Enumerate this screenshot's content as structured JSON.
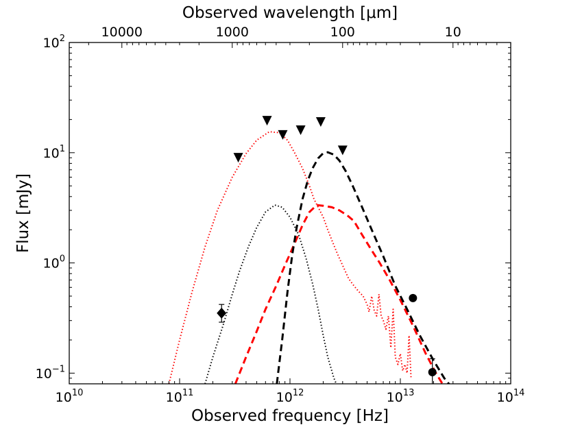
{
  "chart_data": {
    "type": "scatter",
    "xscale": "log",
    "yscale": "log",
    "xlim": [
      10000000000.0,
      100000000000000.0
    ],
    "ylim": [
      0.08,
      100
    ],
    "xlabel": "Observed frequency [Hz]",
    "ylabel": "Flux [mJy]",
    "top_xlabel": "Observed wavelength [μm]",
    "x_ticks": [
      {
        "value": 10000000000.0,
        "base": "10",
        "exp": "10"
      },
      {
        "value": 100000000000.0,
        "base": "10",
        "exp": "11"
      },
      {
        "value": 1000000000000.0,
        "base": "10",
        "exp": "12"
      },
      {
        "value": 10000000000000.0,
        "base": "10",
        "exp": "13"
      },
      {
        "value": 100000000000000.0,
        "base": "10",
        "exp": "14"
      }
    ],
    "y_ticks": [
      {
        "value": 0.1,
        "base": "10",
        "exp": "−1"
      },
      {
        "value": 1,
        "base": "10",
        "exp": "0"
      },
      {
        "value": 10,
        "base": "10",
        "exp": "1"
      },
      {
        "value": 100,
        "base": "10",
        "exp": "2"
      }
    ],
    "top_ticks": [
      {
        "wavelength_um": 10000,
        "label": "10000"
      },
      {
        "wavelength_um": 1000,
        "label": "1000"
      },
      {
        "wavelength_um": 100,
        "label": "100"
      },
      {
        "wavelength_um": 10,
        "label": "10"
      }
    ],
    "grid": false,
    "upper_limits": [
      {
        "x": 340000000000.0,
        "y": 9.0
      },
      {
        "x": 620000000000.0,
        "y": 19.5
      },
      {
        "x": 860000000000.0,
        "y": 14.5
      },
      {
        "x": 1250000000000.0,
        "y": 16.0
      },
      {
        "x": 1900000000000.0,
        "y": 19.0
      },
      {
        "x": 3000000000000.0,
        "y": 10.5
      }
    ],
    "diamonds": [
      {
        "x": 240000000000.0,
        "y": 0.35,
        "err_low": 0.29,
        "err_high": 0.42
      }
    ],
    "circles": [
      {
        "x": 13000000000000.0,
        "y": 0.48
      },
      {
        "x": 19500000000000.0,
        "y": 0.102,
        "err_low": 0.08,
        "err_high": 0.135
      }
    ],
    "series": [
      {
        "style": "dotted",
        "color": "#ff0000",
        "x": [
          80000000000.0,
          100000000000.0,
          130000000000.0,
          170000000000.0,
          220000000000.0,
          300000000000.0,
          400000000000.0,
          500000000000.0,
          650000000000.0,
          800000000000.0,
          950000000000.0,
          1100000000000.0,
          1300000000000.0,
          1500000000000.0,
          1650000000000.0,
          1800000000000.0,
          2000000000000.0,
          2200000000000.0,
          2400000000000.0,
          2700000000000.0,
          3000000000000.0,
          3400000000000.0,
          3800000000000.0,
          4200000000000.0,
          4600000000000.0,
          5000000000000.0,
          5200000000000.0,
          5500000000000.0,
          5800000000000.0,
          6100000000000.0,
          6400000000000.0,
          6700000000000.0,
          7000000000000.0,
          7400000000000.0,
          7800000000000.0,
          8200000000000.0,
          8600000000000.0,
          9000000000000.0,
          9500000000000.0,
          10000000000000.0,
          10500000000000.0,
          11000000000000.0,
          11500000000000.0,
          12000000000000.0,
          12500000000000.0
        ],
        "y": [
          0.08,
          0.2,
          0.55,
          1.4,
          3.0,
          6.0,
          9.8,
          13.0,
          15.5,
          15.2,
          13.0,
          10.0,
          7.2,
          5.0,
          3.8,
          3.2,
          2.6,
          2.0,
          1.6,
          1.2,
          0.95,
          0.72,
          0.62,
          0.55,
          0.5,
          0.42,
          0.36,
          0.5,
          0.37,
          0.33,
          0.52,
          0.33,
          0.3,
          0.25,
          0.33,
          0.17,
          0.38,
          0.14,
          0.12,
          0.15,
          0.105,
          0.12,
          0.1,
          0.22,
          0.09
        ]
      },
      {
        "style": "dotted",
        "color": "#000000",
        "x": [
          170000000000.0,
          200000000000.0,
          250000000000.0,
          300000000000.0,
          350000000000.0,
          420000000000.0,
          500000000000.0,
          600000000000.0,
          730000000000.0,
          850000000000.0,
          1000000000000.0,
          1200000000000.0,
          1400000000000.0,
          1600000000000.0,
          1800000000000.0,
          2000000000000.0,
          2200000000000.0,
          2500000000000.0,
          2700000000000.0
        ],
        "y": [
          0.08,
          0.14,
          0.28,
          0.52,
          0.85,
          1.4,
          2.1,
          2.9,
          3.35,
          3.2,
          2.6,
          1.8,
          1.1,
          0.65,
          0.38,
          0.22,
          0.14,
          0.09,
          0.075
        ]
      },
      {
        "style": "dashed",
        "color": "#ff0000",
        "x": [
          320000000000.0,
          400000000000.0,
          500000000000.0,
          600000000000.0,
          750000000000.0,
          900000000000.0,
          1100000000000.0,
          1300000000000.0,
          1500000000000.0,
          1750000000000.0,
          2000000000000.0,
          2400000000000.0,
          2800000000000.0,
          3300000000000.0,
          3800000000000.0,
          4500000000000.0,
          5500000000000.0,
          6500000000000.0,
          8000000000000.0,
          10000000000000.0,
          13000000000000.0,
          17000000000000.0,
          21000000000000.0,
          25000000000000.0
        ],
        "y": [
          0.08,
          0.14,
          0.24,
          0.38,
          0.62,
          0.95,
          1.5,
          2.2,
          2.9,
          3.35,
          3.3,
          3.2,
          3.0,
          2.7,
          2.4,
          1.8,
          1.3,
          1.0,
          0.7,
          0.46,
          0.27,
          0.15,
          0.1,
          0.075
        ]
      },
      {
        "style": "dashed",
        "color": "#000000",
        "x": [
          760000000000.0,
          850000000000.0,
          950000000000.0,
          1050000000000.0,
          1150000000000.0,
          1300000000000.0,
          1450000000000.0,
          1600000000000.0,
          1800000000000.0,
          2000000000000.0,
          2200000000000.0,
          2500000000000.0,
          2800000000000.0,
          3200000000000.0,
          3700000000000.0,
          4500000000000.0,
          5500000000000.0,
          7000000000000.0,
          9000000000000.0,
          11500000000000.0,
          15000000000000.0,
          20000000000000.0,
          25000000000000.0,
          29000000000000.0
        ],
        "y": [
          0.08,
          0.2,
          0.55,
          1.2,
          2.1,
          3.8,
          5.6,
          7.2,
          8.9,
          9.9,
          10.1,
          9.6,
          8.5,
          6.8,
          5.0,
          3.2,
          2.0,
          1.15,
          0.62,
          0.38,
          0.22,
          0.13,
          0.09,
          0.075
        ]
      }
    ]
  }
}
